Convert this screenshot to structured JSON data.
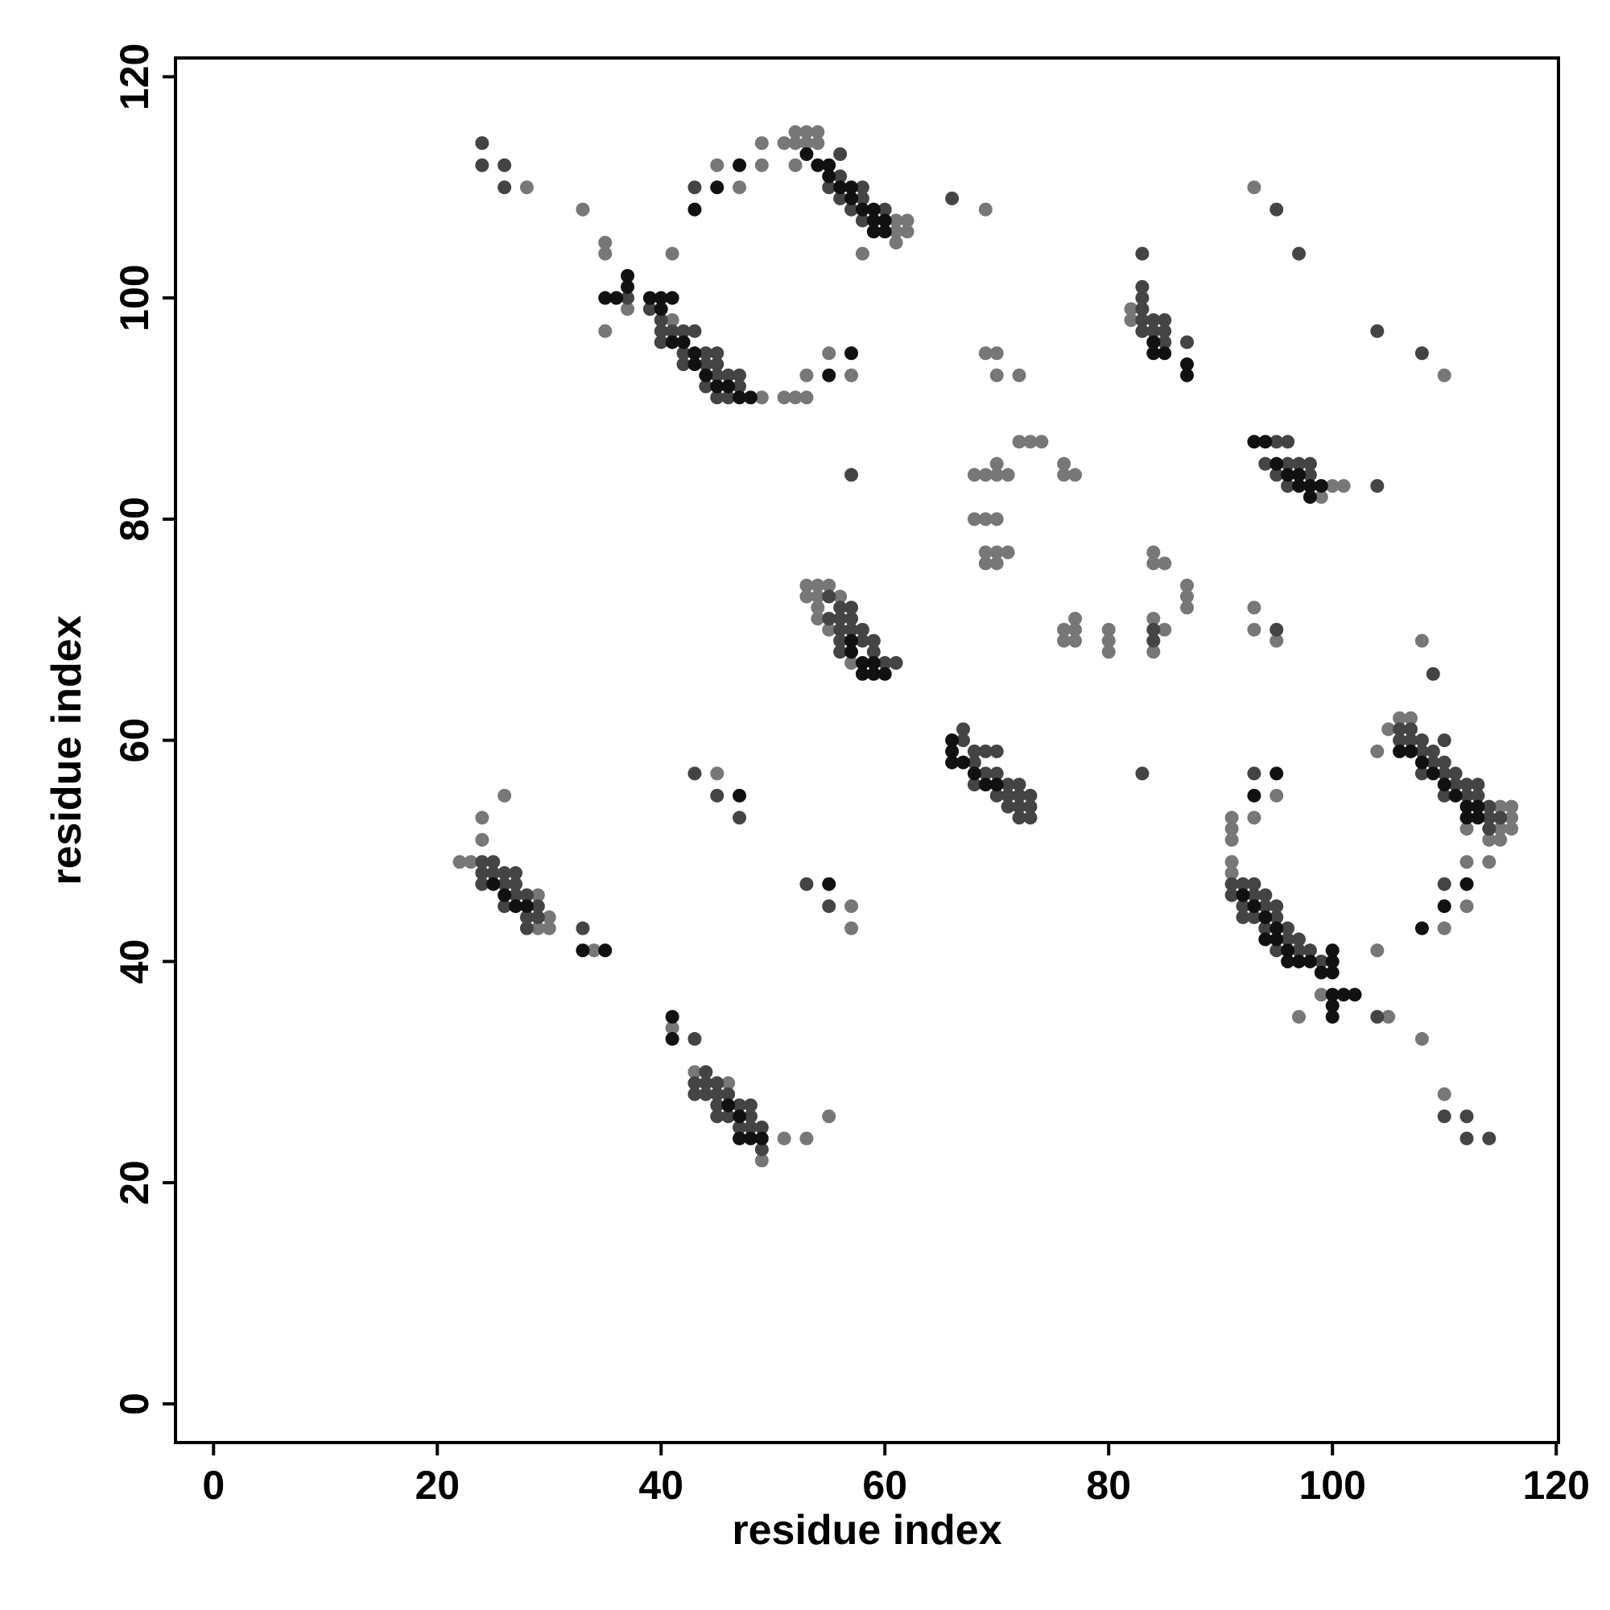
{
  "chart_data": {
    "type": "scatter",
    "x_label": "residue index",
    "y_label": "residue index",
    "xlim": [
      -3.4,
      120.2
    ],
    "ylim": [
      -3.5,
      121.7
    ],
    "xticks": [
      0,
      20,
      40,
      60,
      80,
      100,
      120
    ],
    "yticks": [
      0,
      20,
      40,
      60,
      80,
      100,
      120
    ],
    "series": [
      {
        "color": "#777777",
        "x": [
          28,
          33,
          35,
          35,
          35,
          45,
          47,
          49,
          49,
          41,
          51,
          52,
          53,
          54,
          52,
          53,
          54,
          61,
          62,
          61,
          62,
          61,
          52,
          58,
          37,
          41,
          49,
          51,
          52,
          53,
          53,
          55,
          57,
          69,
          82,
          82,
          93,
          110,
          100,
          101,
          99,
          69,
          70,
          70,
          72,
          72,
          73,
          74,
          76,
          76,
          77,
          68,
          69,
          70,
          70,
          71,
          68,
          69,
          70,
          69,
          70,
          71,
          69,
          70,
          84,
          84,
          85,
          87,
          87,
          87,
          76,
          77,
          76,
          77,
          77,
          80,
          80,
          80,
          84,
          84,
          85,
          93,
          93,
          95,
          53,
          54,
          55,
          53,
          54,
          56,
          54,
          54,
          55,
          57,
          108,
          104,
          105,
          106,
          107,
          115,
          116,
          116,
          115,
          116,
          112,
          114,
          115,
          112,
          114,
          112,
          110,
          95,
          93,
          91,
          91,
          91,
          91,
          91,
          99,
          97,
          104,
          105,
          108,
          110,
          24,
          24,
          26,
          22,
          23,
          29,
          30,
          29,
          30,
          34,
          45,
          57,
          57,
          41,
          43,
          46,
          49,
          51,
          53,
          55
        ],
        "y": [
          110,
          108,
          105,
          104,
          97,
          112,
          110,
          112,
          114,
          104,
          114,
          115,
          115,
          115,
          114,
          114,
          114,
          107,
          107,
          106,
          106,
          105,
          112,
          104,
          99,
          98,
          91,
          91,
          91,
          91,
          93,
          95,
          93,
          108,
          99,
          98,
          110,
          93,
          83,
          83,
          82,
          95,
          95,
          93,
          93,
          87,
          87,
          87,
          85,
          84,
          84,
          84,
          84,
          84,
          85,
          84,
          80,
          80,
          80,
          77,
          77,
          77,
          76,
          76,
          77,
          76,
          76,
          74,
          73,
          72,
          70,
          71,
          69,
          69,
          70,
          70,
          69,
          68,
          71,
          68,
          70,
          72,
          70,
          69,
          74,
          74,
          74,
          73,
          73,
          73,
          72,
          71,
          70,
          67,
          69,
          59,
          61,
          62,
          62,
          54,
          54,
          53,
          52,
          52,
          52,
          51,
          51,
          49,
          49,
          45,
          43,
          55,
          53,
          53,
          52,
          51,
          49,
          48,
          37,
          35,
          41,
          35,
          33,
          28,
          53,
          51,
          55,
          49,
          49,
          46,
          44,
          43,
          43,
          41,
          57,
          45,
          43,
          34,
          30,
          29,
          22,
          24,
          24,
          26
        ]
      },
      {
        "color": "#444444",
        "x": [
          24,
          24,
          26,
          26,
          43,
          56,
          55,
          56,
          58,
          58,
          56,
          57,
          60,
          58,
          37,
          39,
          40,
          40,
          41,
          42,
          43,
          40,
          42,
          44,
          45,
          42,
          44,
          45,
          45,
          46,
          47,
          44,
          47,
          45,
          46,
          57,
          66,
          83,
          83,
          83,
          83,
          83,
          83,
          84,
          84,
          85,
          85,
          85,
          87,
          95,
          96,
          94,
          96,
          97,
          98,
          98,
          95,
          96,
          104,
          95,
          97,
          104,
          108,
          84,
          84,
          95,
          55,
          56,
          57,
          55,
          56,
          57,
          56,
          57,
          58,
          56,
          58,
          59,
          56,
          59,
          60,
          61,
          67,
          67,
          68,
          69,
          70,
          68,
          69,
          70,
          68,
          71,
          72,
          70,
          71,
          72,
          73,
          71,
          72,
          73,
          72,
          73,
          83,
          109,
          106,
          107,
          106,
          107,
          108,
          108,
          109,
          110,
          109,
          110,
          108,
          110,
          111,
          111,
          112,
          113,
          110,
          112,
          113,
          114,
          114,
          115,
          114,
          110,
          93,
          91,
          92,
          93,
          91,
          93,
          94,
          92,
          94,
          95,
          92,
          93,
          95,
          94,
          96,
          96,
          97,
          95,
          97,
          98,
          99,
          24,
          25,
          24,
          25,
          26,
          27,
          24,
          26,
          27,
          27,
          28,
          26,
          29,
          28,
          29,
          28,
          33,
          43,
          45,
          47,
          53,
          55,
          43,
          44,
          43,
          44,
          45,
          43,
          44,
          45,
          46,
          45,
          47,
          48,
          45,
          46,
          48,
          47,
          48,
          49,
          49,
          104,
          110,
          112,
          112,
          114
        ],
        "y": [
          114,
          112,
          112,
          110,
          110,
          113,
          110,
          109,
          110,
          109,
          111,
          108,
          108,
          107,
          100,
          99,
          98,
          97,
          97,
          97,
          97,
          96,
          95,
          95,
          95,
          94,
          94,
          94,
          93,
          93,
          93,
          92,
          92,
          91,
          91,
          84,
          109,
          104,
          101,
          100,
          99,
          98,
          97,
          98,
          97,
          98,
          97,
          96,
          96,
          87,
          87,
          85,
          85,
          85,
          84,
          85,
          84,
          83,
          83,
          108,
          104,
          97,
          95,
          70,
          69,
          70,
          73,
          72,
          72,
          71,
          71,
          71,
          70,
          70,
          70,
          69,
          69,
          69,
          68,
          68,
          67,
          67,
          61,
          60,
          59,
          59,
          59,
          58,
          57,
          57,
          56,
          56,
          56,
          55,
          55,
          55,
          55,
          54,
          54,
          54,
          53,
          53,
          57,
          66,
          61,
          61,
          60,
          60,
          60,
          59,
          59,
          60,
          58,
          58,
          57,
          57,
          57,
          56,
          56,
          56,
          55,
          55,
          55,
          54,
          53,
          53,
          52,
          47,
          57,
          47,
          47,
          47,
          46,
          46,
          46,
          45,
          45,
          45,
          44,
          44,
          44,
          43,
          43,
          42,
          42,
          41,
          41,
          41,
          40,
          49,
          49,
          48,
          48,
          48,
          48,
          47,
          47,
          47,
          46,
          46,
          45,
          45,
          44,
          44,
          43,
          43,
          57,
          55,
          53,
          47,
          45,
          33,
          30,
          29,
          29,
          29,
          28,
          28,
          28,
          28,
          27,
          27,
          27,
          26,
          26,
          26,
          25,
          25,
          25,
          23,
          35,
          26,
          26,
          24,
          24
        ]
      },
      {
        "color": "#111111",
        "x": [
          45,
          43,
          47,
          53,
          54,
          55,
          55,
          56,
          57,
          57,
          58,
          59,
          59,
          60,
          59,
          60,
          35,
          36,
          37,
          37,
          39,
          40,
          41,
          40,
          41,
          42,
          43,
          43,
          44,
          45,
          46,
          47,
          48,
          55,
          57,
          84,
          84,
          85,
          87,
          87,
          93,
          94,
          95,
          96,
          97,
          97,
          98,
          99,
          98,
          57,
          58,
          59,
          60,
          58,
          59,
          57,
          66,
          66,
          67,
          66,
          68,
          69,
          70,
          112,
          110,
          108,
          95,
          93,
          106,
          107,
          108,
          109,
          110,
          111,
          112,
          113,
          112,
          113,
          92,
          93,
          94,
          95,
          94,
          95,
          96,
          96,
          97,
          98,
          100,
          100,
          99,
          100,
          100,
          101,
          102,
          100,
          100,
          35,
          33,
          41,
          41,
          47,
          55,
          46,
          47,
          47,
          48,
          49,
          25,
          26,
          27,
          28
        ],
        "y": [
          110,
          108,
          112,
          113,
          112,
          112,
          111,
          110,
          110,
          109,
          108,
          108,
          107,
          107,
          106,
          106,
          100,
          100,
          102,
          101,
          100,
          100,
          100,
          99,
          96,
          96,
          95,
          94,
          93,
          92,
          92,
          91,
          91,
          93,
          95,
          96,
          95,
          95,
          94,
          93,
          87,
          87,
          85,
          84,
          84,
          83,
          83,
          83,
          82,
          68,
          67,
          66,
          66,
          66,
          67,
          69,
          60,
          59,
          58,
          58,
          57,
          56,
          56,
          47,
          45,
          43,
          57,
          55,
          59,
          59,
          58,
          57,
          56,
          55,
          54,
          54,
          53,
          53,
          46,
          45,
          44,
          43,
          42,
          42,
          41,
          40,
          40,
          40,
          41,
          40,
          39,
          39,
          37,
          37,
          37,
          36,
          35,
          41,
          41,
          35,
          33,
          55,
          47,
          27,
          26,
          24,
          24,
          24,
          47,
          46,
          45,
          45
        ]
      }
    ]
  }
}
